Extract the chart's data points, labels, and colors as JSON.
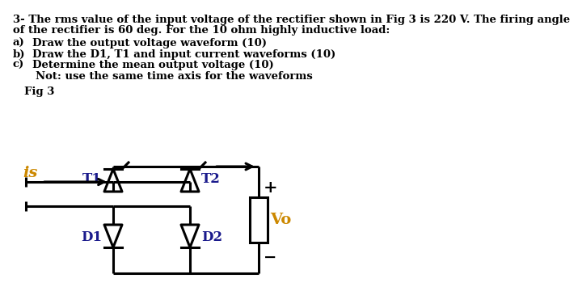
{
  "bg_color": "#ffffff",
  "text_color": "#000000",
  "circuit_color": "#000000",
  "label_color_orange": "#cc8800",
  "label_color_blue": "#1a1a8c",
  "title_lines": [
    "3- The rms value of the input voltage of the rectifier shown in Fig 3 is 220 V. The firing angle",
    "of the rectifier is 60 deg. For the 10 ohm highly inductive load:"
  ],
  "items": [
    [
      "a)",
      "Draw the output voltage waveform (10)"
    ],
    [
      "b)",
      "Draw the D1, T1 and input current waveforms (10)"
    ],
    [
      "c)",
      "Determine the mean output voltage (10)"
    ],
    [
      "",
      "Not: use the same time axis for the waveforms"
    ]
  ],
  "fig_label": "Fig 3",
  "font_size_main": 9.5,
  "font_size_circuit": 12
}
